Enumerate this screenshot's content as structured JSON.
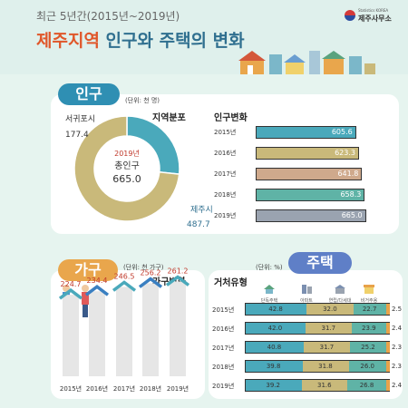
{
  "header": {
    "subtitle": "최근 5년간(2015년~2019년)",
    "title_accent": "제주지역",
    "title_rest": "인구와 주택의 변화",
    "logo_tag": "Statistics KOREA",
    "logo_name": "제주사무소"
  },
  "population": {
    "section_label": "인구",
    "unit": "(단위: 천 명)",
    "dist_title": "지역분포",
    "trend_title": "인구변화",
    "center_year": "2019년",
    "center_label": "총인구",
    "center_value": "665.0"
  },
  "households": {
    "section_label": "가구",
    "unit": "(단위: 천 가구)",
    "trend_title": "가구변화"
  },
  "housing": {
    "section_label": "주택",
    "unit": "(단위: %)",
    "type_title": "거처유형",
    "legend": [
      "단독주택",
      "아파트",
      "연립/다세대",
      "비거주용"
    ]
  },
  "chart_data": [
    {
      "type": "pie",
      "title": "지역분포",
      "labels": [
        "서귀포시",
        "제주시"
      ],
      "values": [
        177.4,
        487.7
      ],
      "colors": [
        "#4aa9bb",
        "#c9b97a"
      ]
    },
    {
      "type": "bar",
      "title": "인구변화",
      "categories": [
        "2015년",
        "2016년",
        "2017년",
        "2018년",
        "2019년"
      ],
      "values": [
        605.6,
        623.3,
        641.8,
        658.3,
        665.0
      ],
      "colors": [
        "#4aa9bb",
        "#c9b97a",
        "#cfa98c",
        "#5fb3a6",
        "#9aa3b0"
      ]
    },
    {
      "type": "bar",
      "title": "가구변화",
      "categories": [
        "2015년",
        "2016년",
        "2017년",
        "2018년",
        "2019년"
      ],
      "values": [
        224.7,
        234.4,
        246.5,
        256.2,
        261.2
      ]
    },
    {
      "type": "bar",
      "title": "거처유형",
      "stacked": true,
      "categories": [
        "2015년",
        "2016년",
        "2017년",
        "2018년",
        "2019년"
      ],
      "series": [
        {
          "name": "단독주택",
          "values": [
            42.8,
            42.0,
            40.8,
            39.8,
            39.2
          ],
          "color": "#4aa9bb"
        },
        {
          "name": "아파트",
          "values": [
            32.0,
            31.7,
            31.7,
            31.8,
            31.6
          ],
          "color": "#c9b97a"
        },
        {
          "name": "연립/다세대",
          "values": [
            22.7,
            23.9,
            25.2,
            26.0,
            26.8
          ],
          "color": "#5fb3a6"
        },
        {
          "name": "비거주용",
          "values": [
            2.5,
            2.4,
            2.3,
            2.3,
            2.4
          ],
          "color": "#e8a24a"
        }
      ]
    }
  ]
}
